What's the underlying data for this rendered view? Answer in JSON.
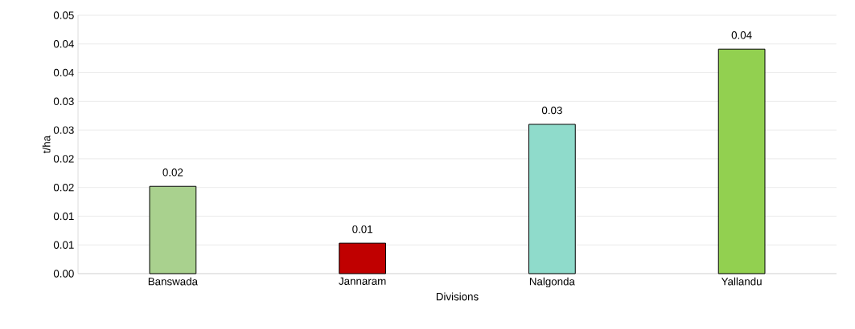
{
  "chart_data": {
    "type": "bar",
    "xlabel": "Divisions",
    "ylabel": "t/ha",
    "categories": [
      "Banswada",
      "Jannaram",
      "Nalgonda",
      "Yallandu"
    ],
    "values": [
      0.0152,
      0.0053,
      0.026,
      0.0391
    ],
    "colors": [
      "#a9d18e",
      "#c00000",
      "#8fdbcb",
      "#92d050"
    ],
    "value_labels": [
      "0.02",
      "0.01",
      "0.03",
      "0.04"
    ],
    "ylim": [
      0,
      0.045
    ],
    "yticks": [
      {
        "value": 0,
        "label": "0.00"
      },
      {
        "value": 0.005,
        "label": "0.01"
      },
      {
        "value": 0.01,
        "label": "0.01"
      },
      {
        "value": 0.015,
        "label": "0.02"
      },
      {
        "value": 0.02,
        "label": "0.02"
      },
      {
        "value": 0.025,
        "label": "0.03"
      },
      {
        "value": 0.03,
        "label": "0.03"
      },
      {
        "value": 0.035,
        "label": "0.04"
      },
      {
        "value": 0.04,
        "label": "0.04"
      },
      {
        "value": 0.045,
        "label": "0.05"
      }
    ],
    "grid": "y"
  }
}
